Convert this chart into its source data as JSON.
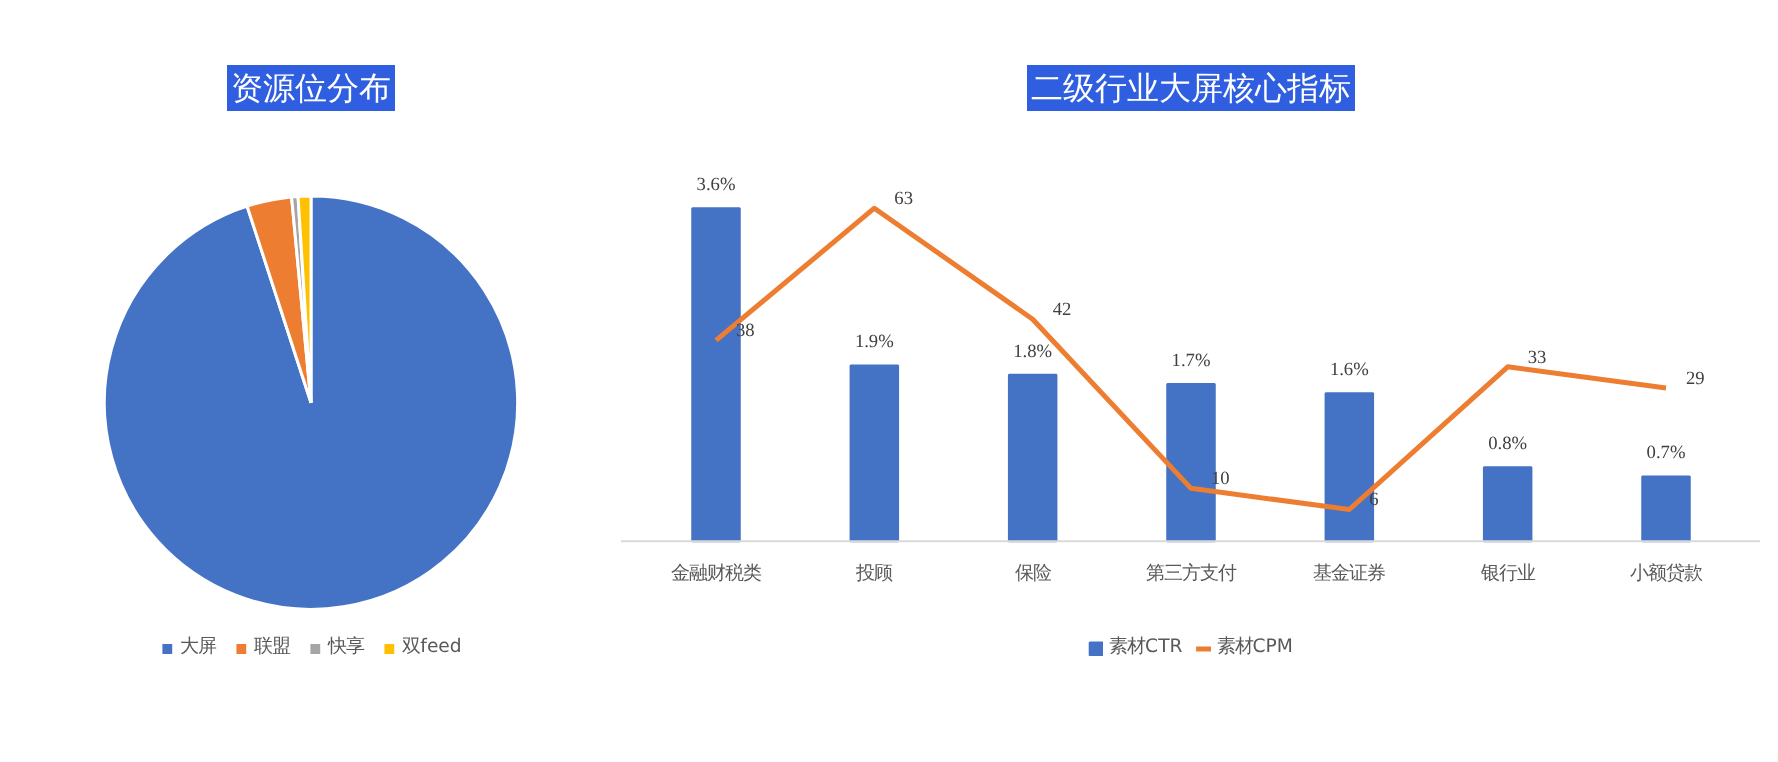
{
  "chart_data": [
    {
      "type": "pie",
      "title": "资源位分布",
      "categories": [
        "大屏",
        "联盟",
        "快享",
        "双feed"
      ],
      "values": [
        95,
        3.5,
        0.5,
        1
      ],
      "colors": [
        "#4472c4",
        "#ed7d31",
        "#a5a5a5",
        "#ffc000"
      ],
      "legend": "bottom"
    },
    {
      "type": "bar",
      "title": "二级行业大屏核心指标",
      "categories": [
        "金融财税类",
        "投顾",
        "保险",
        "第三方支付",
        "基金证券",
        "银行业",
        "小额贷款"
      ],
      "legend": "bottom",
      "grid": false,
      "tick_labels": "x",
      "series": [
        {
          "name": "素材CTR",
          "type": "bar",
          "color": "#4472c4",
          "values": [
            3.6,
            1.9,
            1.8,
            1.7,
            1.6,
            0.8,
            0.7
          ],
          "value_labels": [
            "3.6%",
            "1.9%",
            "1.8%",
            "1.7%",
            "1.6%",
            "0.8%",
            "0.7%"
          ]
        },
        {
          "name": "素材CPM",
          "type": "line",
          "axis": "y2",
          "color": "#ed7d31",
          "values": [
            38,
            63,
            42,
            10,
            6,
            33,
            29
          ],
          "value_labels": [
            "38",
            "63",
            "42",
            "10",
            "6",
            "33",
            "29"
          ]
        }
      ]
    }
  ]
}
